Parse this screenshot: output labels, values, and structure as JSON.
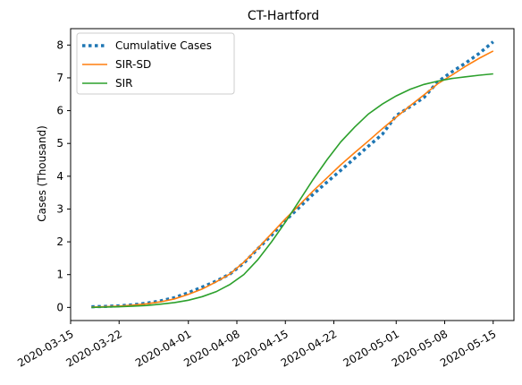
{
  "chart_data": {
    "type": "line",
    "title": "CT-Hartford",
    "xlabel": "",
    "ylabel": "Cases (Thousand)",
    "x_type": "date",
    "xlim": [
      "2020-03-15",
      "2020-05-18"
    ],
    "ylim": [
      -0.4,
      8.5
    ],
    "x_ticks": [
      "2020-03-15",
      "2020-03-22",
      "2020-04-01",
      "2020-04-08",
      "2020-04-15",
      "2020-04-22",
      "2020-05-01",
      "2020-05-08",
      "2020-05-15"
    ],
    "y_ticks": [
      0,
      1,
      2,
      3,
      4,
      5,
      6,
      7,
      8
    ],
    "grid": false,
    "legend_position": "top-left",
    "x": [
      "2020-03-18",
      "2020-03-20",
      "2020-03-22",
      "2020-03-24",
      "2020-03-26",
      "2020-03-28",
      "2020-03-30",
      "2020-04-01",
      "2020-04-03",
      "2020-04-05",
      "2020-04-07",
      "2020-04-09",
      "2020-04-11",
      "2020-04-13",
      "2020-04-15",
      "2020-04-17",
      "2020-04-19",
      "2020-04-21",
      "2020-04-23",
      "2020-04-25",
      "2020-04-27",
      "2020-04-29",
      "2020-05-01",
      "2020-05-03",
      "2020-05-05",
      "2020-05-07",
      "2020-05-09",
      "2020-05-11",
      "2020-05-13",
      "2020-05-15"
    ],
    "series": [
      {
        "name": "Cumulative Cases",
        "color": "#1f77b4",
        "style": "dotted",
        "values": [
          0.02,
          0.03,
          0.05,
          0.08,
          0.13,
          0.2,
          0.3,
          0.45,
          0.62,
          0.8,
          1.02,
          1.35,
          1.78,
          2.2,
          2.65,
          3.05,
          3.45,
          3.82,
          4.18,
          4.55,
          4.92,
          5.28,
          5.85,
          6.12,
          6.4,
          6.88,
          7.18,
          7.45,
          7.75,
          8.1
        ]
      },
      {
        "name": "SIR-SD",
        "color": "#ff7f0e",
        "style": "solid",
        "values": [
          0.01,
          0.02,
          0.04,
          0.07,
          0.11,
          0.17,
          0.26,
          0.4,
          0.56,
          0.78,
          1.02,
          1.38,
          1.8,
          2.25,
          2.7,
          3.12,
          3.55,
          3.95,
          4.35,
          4.72,
          5.08,
          5.45,
          5.8,
          6.15,
          6.48,
          6.82,
          7.08,
          7.35,
          7.6,
          7.82
        ]
      },
      {
        "name": "SIR",
        "color": "#2ca02c",
        "style": "solid",
        "values": [
          0.0,
          0.01,
          0.02,
          0.04,
          0.06,
          0.1,
          0.15,
          0.22,
          0.33,
          0.48,
          0.7,
          1.0,
          1.45,
          2.0,
          2.6,
          3.25,
          3.9,
          4.5,
          5.05,
          5.5,
          5.9,
          6.2,
          6.45,
          6.65,
          6.8,
          6.9,
          6.98,
          7.03,
          7.08,
          7.12
        ]
      }
    ]
  }
}
